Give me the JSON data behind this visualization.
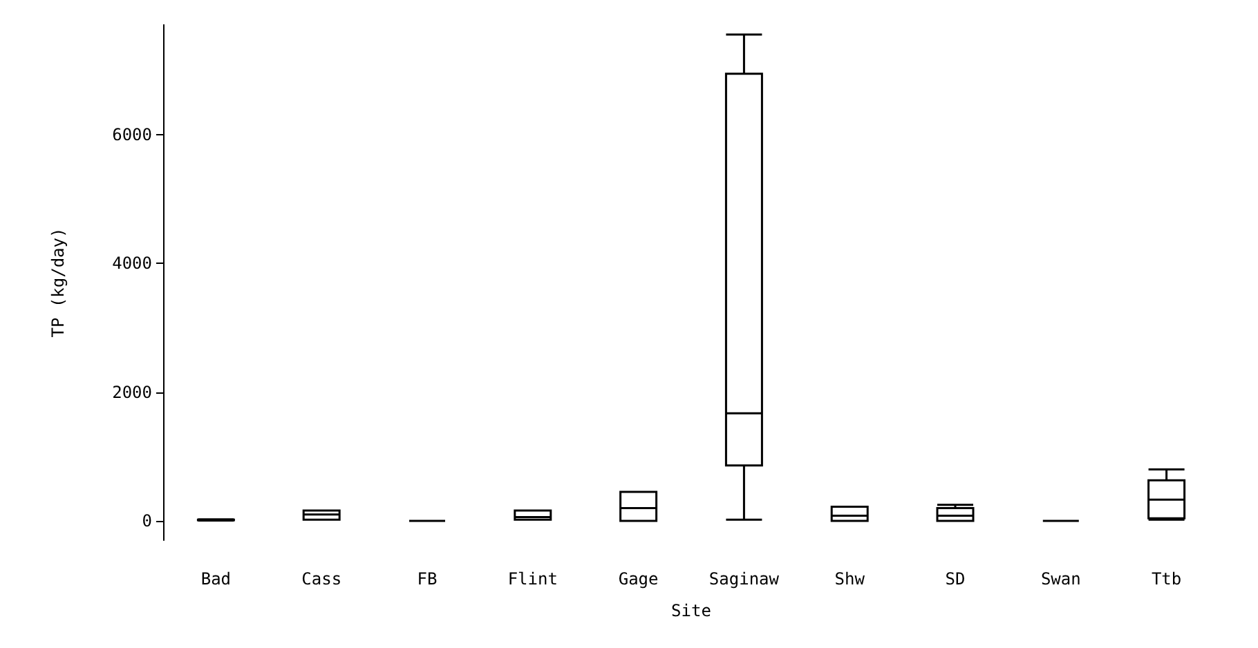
{
  "chart_data": {
    "type": "box",
    "xlabel": "Site",
    "ylabel": "TP (kg/day)",
    "categories": [
      "Bad",
      "Cass",
      "FB",
      "Flint",
      "Gage",
      "Saginaw",
      "Shw",
      "SD",
      "Swan",
      "Ttb"
    ],
    "boxes": [
      {
        "low": 5,
        "q1": 10,
        "median": 15,
        "q3": 20,
        "high": 25
      },
      {
        "low": 20,
        "q1": 20,
        "median": 100,
        "q3": 160,
        "high": 160
      },
      {
        "low": 0,
        "q1": 0,
        "median": 0,
        "q3": 0,
        "high": 0
      },
      {
        "low": 20,
        "q1": 20,
        "median": 60,
        "q3": 160,
        "high": 160
      },
      {
        "low": 0,
        "q1": 0,
        "median": 200,
        "q3": 450,
        "high": 450
      },
      {
        "low": 20,
        "q1": 860,
        "median": 1670,
        "q3": 6940,
        "high": 7550
      },
      {
        "low": 0,
        "q1": 0,
        "median": 80,
        "q3": 220,
        "high": 220
      },
      {
        "low": 0,
        "q1": 0,
        "median": 80,
        "q3": 200,
        "high": 250
      },
      {
        "low": 0,
        "q1": 0,
        "median": 0,
        "q3": 0,
        "high": 0
      },
      {
        "low": 20,
        "q1": 40,
        "median": 330,
        "q3": 630,
        "high": 800
      }
    ],
    "ylim": [
      -300,
      7700
    ],
    "yticks": [
      0,
      2000,
      4000,
      6000
    ],
    "grid": false
  }
}
